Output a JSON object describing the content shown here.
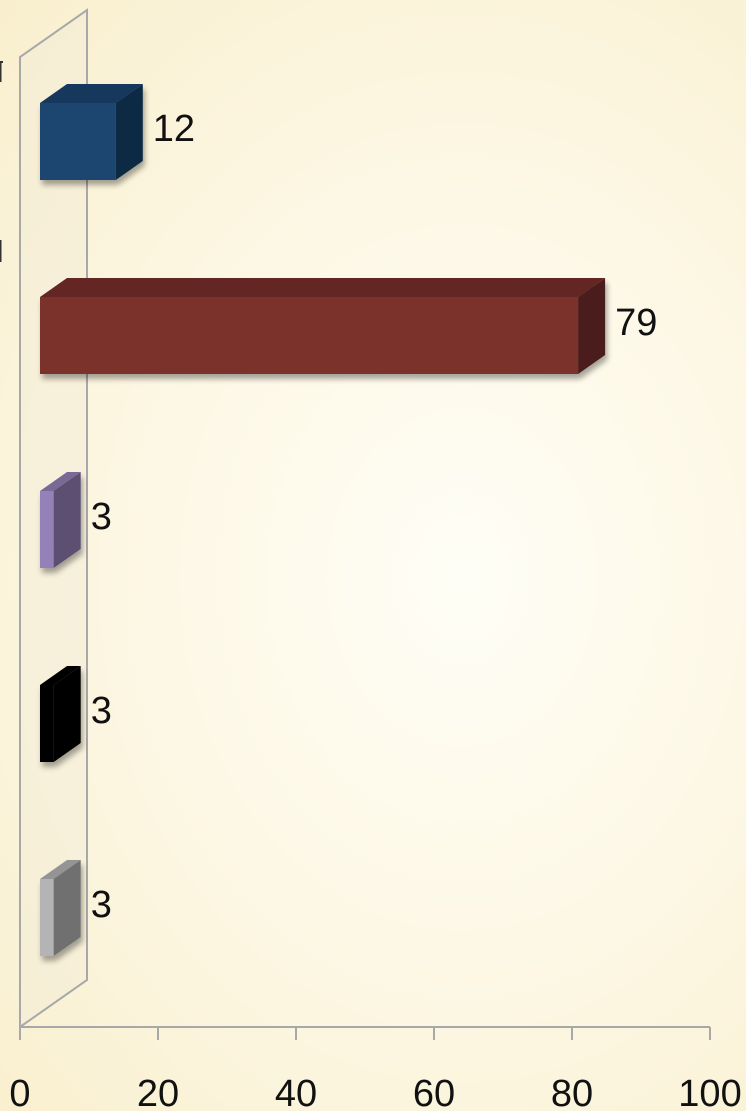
{
  "chart_data": {
    "type": "bar",
    "orientation": "horizontal",
    "style": "3d",
    "categories": [
      "",
      "",
      "",
      "",
      ""
    ],
    "values": [
      12,
      79,
      3,
      3,
      3
    ],
    "data_labels": [
      "12",
      "79",
      "3",
      "3",
      "3"
    ],
    "bar_colors": [
      "#1c4470",
      "#7a302a",
      "#9580b8",
      "#050505",
      "#b4b4b4"
    ],
    "xlim": [
      0,
      100
    ],
    "xticks": [
      "0",
      "20",
      "40",
      "60",
      "80",
      "100"
    ],
    "grid": false,
    "legend": "none",
    "title": "",
    "xlabel": "",
    "ylabel": ""
  }
}
